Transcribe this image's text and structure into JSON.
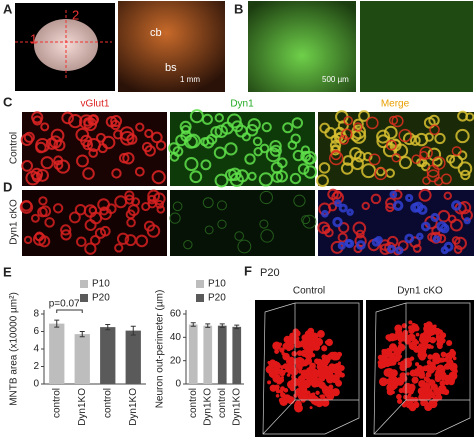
{
  "panels": {
    "a": {
      "label": "A",
      "cut1": "1",
      "cut2": "2",
      "cb": "cb",
      "bs": "bs",
      "scale": "1 mm"
    },
    "b": {
      "label": "B",
      "scale": "500 µm"
    },
    "c": {
      "label": "C",
      "col1": "vGlut1",
      "col2": "Dyn1",
      "col3": "Merge",
      "row": "Control"
    },
    "d": {
      "label": "D",
      "row": "Dyn1 cKO"
    },
    "e": {
      "label": "E"
    },
    "f": {
      "label": "F",
      "age": "P20",
      "left": "Control",
      "right": "Dyn1 cKO"
    }
  },
  "chart_data": [
    {
      "type": "bar",
      "y_label": "MNTB area (x10000 µm²)",
      "categories": [
        "control",
        "Dyn1KO",
        "control",
        "Dyn1KO"
      ],
      "series": [
        {
          "name": "P10",
          "color": "#bdbdbd",
          "values": [
            6.9,
            5.7,
            null,
            null
          ],
          "errors": [
            0.4,
            0.3,
            null,
            null
          ]
        },
        {
          "name": "P20",
          "color": "#5a5a5a",
          "values": [
            null,
            null,
            6.5,
            6.1
          ],
          "errors": [
            null,
            null,
            0.3,
            0.5
          ]
        }
      ],
      "ylim": [
        0,
        8
      ],
      "yticks": [
        0,
        2,
        4,
        6,
        8
      ],
      "annotation": "p=0.07"
    },
    {
      "type": "bar",
      "y_label": "Neuron out-perimeter  (µm)",
      "categories": [
        "control",
        "Dyn1KO",
        "control",
        "Dyn1KO"
      ],
      "series": [
        {
          "name": "P10",
          "color": "#bdbdbd",
          "values": [
            51,
            50,
            null,
            null
          ],
          "errors": [
            1.5,
            1.5,
            null,
            null
          ]
        },
        {
          "name": "P20",
          "color": "#5a5a5a",
          "values": [
            null,
            null,
            50,
            49
          ],
          "errors": [
            null,
            null,
            1.5,
            1.5
          ]
        }
      ],
      "ylim": [
        0,
        60
      ],
      "yticks": [
        0,
        20,
        40,
        60
      ]
    }
  ]
}
